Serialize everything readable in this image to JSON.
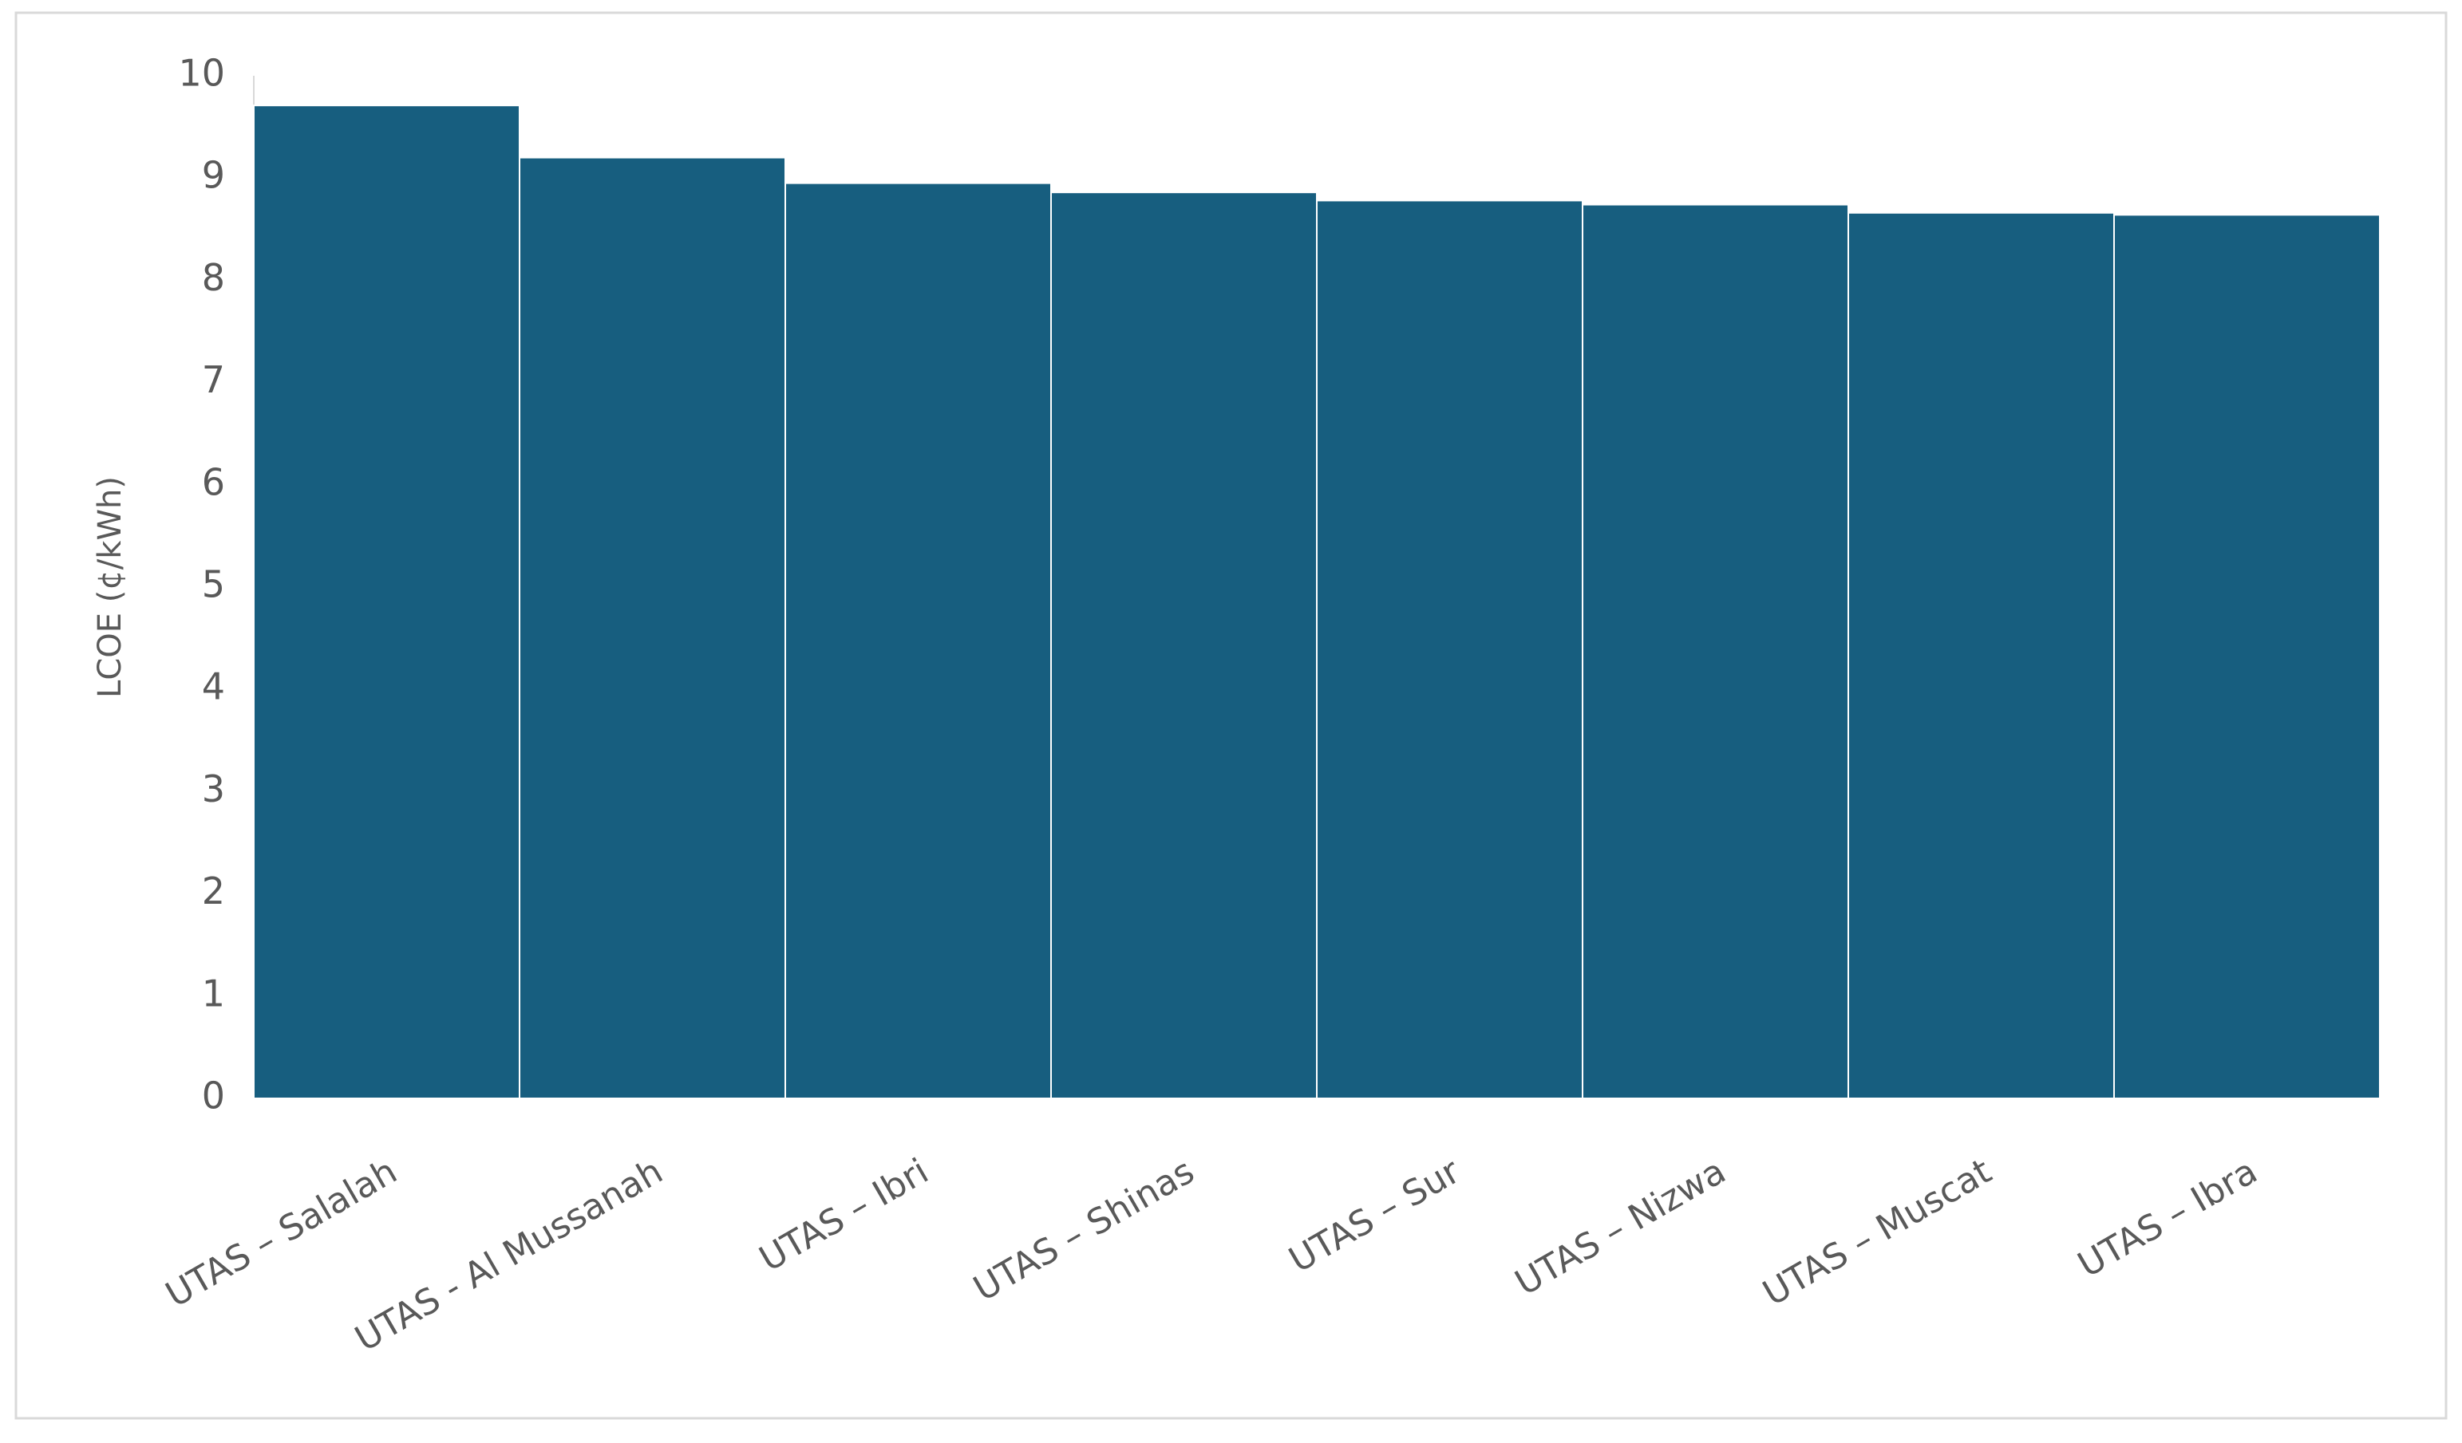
{
  "chart_data": {
    "type": "bar",
    "y_label": "LCOE (¢/kWh)",
    "categories": [
      "UTAS – Salalah",
      "UTAS - Al Mussanah",
      "UTAS – Ibri",
      "UTAS – Shinas",
      "UTAS – Sur",
      "UTAS – Nizwa",
      "UTAS – Muscat",
      "UTAS – Ibra"
    ],
    "values": [
      9.71,
      9.2,
      8.95,
      8.86,
      8.78,
      8.74,
      8.66,
      8.64
    ],
    "color": "#175e7f",
    "ylim": [
      0,
      10
    ],
    "yticks": [
      0,
      1,
      2,
      3,
      4,
      5,
      6,
      7,
      8,
      9,
      10
    ],
    "grid": false
  }
}
